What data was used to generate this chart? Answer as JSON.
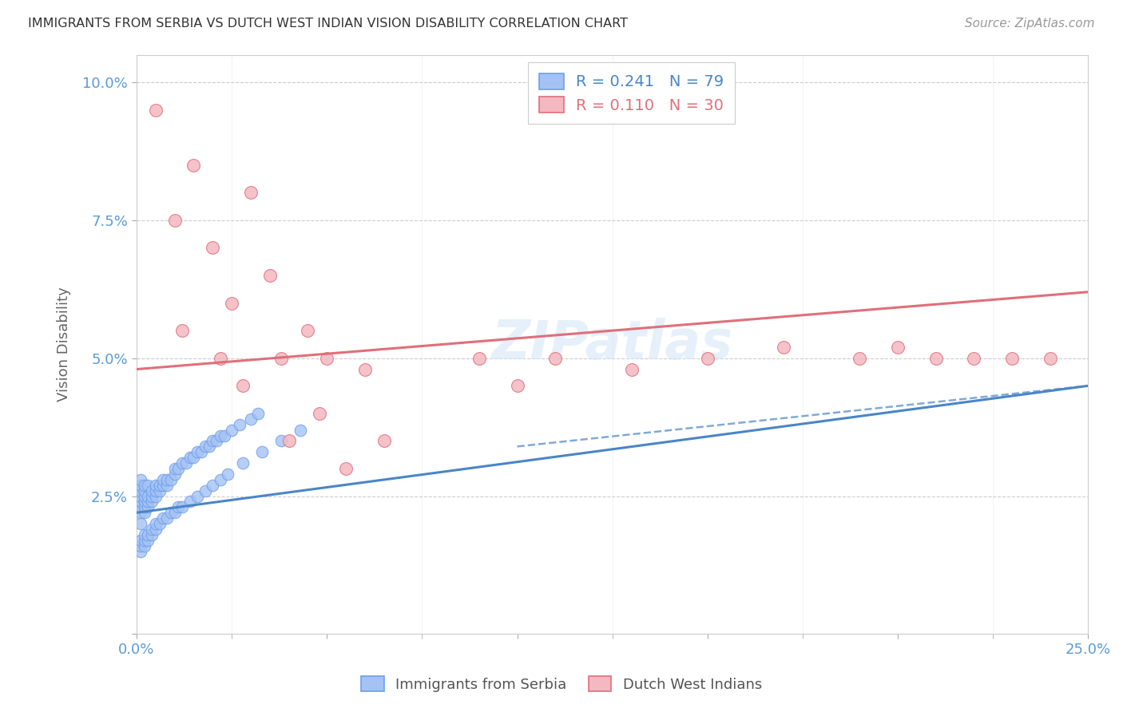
{
  "title": "IMMIGRANTS FROM SERBIA VS DUTCH WEST INDIAN VISION DISABILITY CORRELATION CHART",
  "source": "Source: ZipAtlas.com",
  "ylabel": "Vision Disability",
  "xlim": [
    0.0,
    0.25
  ],
  "ylim": [
    0.0,
    0.105
  ],
  "xticks": [
    0.0,
    0.05,
    0.1,
    0.15,
    0.2,
    0.25
  ],
  "yticks": [
    0.0,
    0.025,
    0.05,
    0.075,
    0.1
  ],
  "xticklabels": [
    "0.0%",
    "",
    "",
    "",
    "",
    "25.0%"
  ],
  "yticklabels": [
    "",
    "2.5%",
    "5.0%",
    "7.5%",
    "10.0%"
  ],
  "blue_R": 0.241,
  "blue_N": 79,
  "pink_R": 0.11,
  "pink_N": 30,
  "blue_color": "#a4c2f4",
  "pink_color": "#f4b8c1",
  "blue_edge_color": "#6d9eeb",
  "pink_edge_color": "#e06f7a",
  "blue_line_color": "#4a86c8",
  "pink_line_color": "#e06f7a",
  "watermark": "ZIPatlas",
  "blue_x": [
    0.001,
    0.001,
    0.001,
    0.001,
    0.001,
    0.001,
    0.001,
    0.001,
    0.002,
    0.002,
    0.002,
    0.002,
    0.002,
    0.002,
    0.003,
    0.003,
    0.003,
    0.003,
    0.004,
    0.004,
    0.004,
    0.005,
    0.005,
    0.005,
    0.006,
    0.006,
    0.007,
    0.007,
    0.008,
    0.008,
    0.009,
    0.01,
    0.01,
    0.011,
    0.012,
    0.013,
    0.014,
    0.015,
    0.016,
    0.017,
    0.018,
    0.019,
    0.02,
    0.021,
    0.022,
    0.023,
    0.025,
    0.027,
    0.03,
    0.032,
    0.001,
    0.001,
    0.001,
    0.002,
    0.002,
    0.002,
    0.003,
    0.003,
    0.004,
    0.004,
    0.005,
    0.005,
    0.006,
    0.007,
    0.008,
    0.009,
    0.01,
    0.011,
    0.012,
    0.014,
    0.016,
    0.018,
    0.02,
    0.022,
    0.024,
    0.028,
    0.033,
    0.038,
    0.043
  ],
  "blue_y": [
    0.02,
    0.022,
    0.023,
    0.024,
    0.025,
    0.026,
    0.027,
    0.028,
    0.022,
    0.023,
    0.024,
    0.025,
    0.026,
    0.027,
    0.023,
    0.024,
    0.025,
    0.027,
    0.024,
    0.025,
    0.026,
    0.025,
    0.026,
    0.027,
    0.026,
    0.027,
    0.027,
    0.028,
    0.027,
    0.028,
    0.028,
    0.029,
    0.03,
    0.03,
    0.031,
    0.031,
    0.032,
    0.032,
    0.033,
    0.033,
    0.034,
    0.034,
    0.035,
    0.035,
    0.036,
    0.036,
    0.037,
    0.038,
    0.039,
    0.04,
    0.015,
    0.016,
    0.017,
    0.016,
    0.017,
    0.018,
    0.017,
    0.018,
    0.018,
    0.019,
    0.019,
    0.02,
    0.02,
    0.021,
    0.021,
    0.022,
    0.022,
    0.023,
    0.023,
    0.024,
    0.025,
    0.026,
    0.027,
    0.028,
    0.029,
    0.031,
    0.033,
    0.035,
    0.037
  ],
  "pink_x": [
    0.005,
    0.01,
    0.012,
    0.015,
    0.02,
    0.022,
    0.025,
    0.028,
    0.03,
    0.035,
    0.038,
    0.04,
    0.045,
    0.048,
    0.05,
    0.055,
    0.06,
    0.065,
    0.09,
    0.1,
    0.11,
    0.13,
    0.15,
    0.17,
    0.19,
    0.2,
    0.21,
    0.22,
    0.23,
    0.24
  ],
  "pink_y": [
    0.095,
    0.075,
    0.055,
    0.085,
    0.07,
    0.05,
    0.06,
    0.045,
    0.08,
    0.065,
    0.05,
    0.035,
    0.055,
    0.04,
    0.05,
    0.03,
    0.048,
    0.035,
    0.05,
    0.045,
    0.05,
    0.048,
    0.05,
    0.052,
    0.05,
    0.052,
    0.05,
    0.05,
    0.05,
    0.05
  ],
  "blue_line_x": [
    0.0,
    0.25
  ],
  "blue_line_y": [
    0.022,
    0.045
  ],
  "pink_line_x": [
    0.0,
    0.25
  ],
  "pink_line_y": [
    0.048,
    0.062
  ]
}
